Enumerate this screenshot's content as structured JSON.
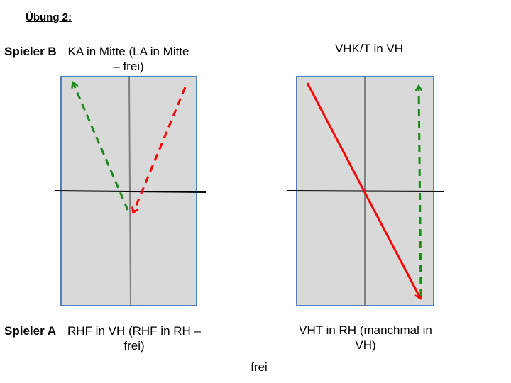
{
  "title": "Übung 2:",
  "left": {
    "player_top": "Spieler B",
    "top_line1": "KA in Mitte (LA in Mitte",
    "top_line2": "– frei)",
    "player_bottom": "Spieler A",
    "bottom_line1": "RHF in VH (RHF in RH –",
    "bottom_line2": "frei)"
  },
  "right": {
    "top_text": "VHK/T in VH",
    "bottom_line1": "VHT in RH (manchmal in",
    "bottom_line2": "VH)"
  },
  "footer": "frei",
  "colors": {
    "court_fill": "#d9d9d9",
    "court_border": "#4f81bd",
    "center_line": "#808080",
    "net": "#000000",
    "green_arrow": "#1a8a1a",
    "red_arrow": "#ff0000"
  }
}
